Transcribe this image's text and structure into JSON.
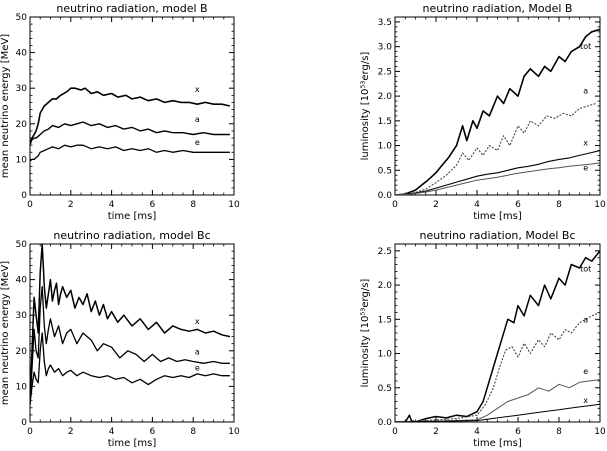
{
  "chart_data": [
    {
      "type": "line",
      "title": "neutrino radiation,  model B",
      "xlabel": "time [ms]",
      "ylabel": "mean neutrino energy [MeV]",
      "xlim": [
        0,
        10
      ],
      "ylim": [
        0,
        50
      ],
      "xticks": [
        "0",
        "2",
        "4",
        "6",
        "8",
        "10"
      ],
      "yticks": [
        "0",
        "10",
        "20",
        "30",
        "40",
        "50"
      ],
      "grid": false,
      "series": [
        {
          "name": "x",
          "color": "#000000",
          "width": 1.6,
          "x": [
            0,
            0.1,
            0.2,
            0.3,
            0.4,
            0.5,
            0.6,
            0.7,
            0.9,
            1.1,
            1.3,
            1.5,
            1.8,
            2.0,
            2.2,
            2.5,
            2.7,
            3.0,
            3.3,
            3.6,
            4.0,
            4.3,
            4.7,
            5.0,
            5.4,
            5.8,
            6.2,
            6.6,
            7.0,
            7.4,
            7.8,
            8.2,
            8.6,
            9.0,
            9.4,
            9.8
          ],
          "y": [
            14,
            16,
            17,
            18,
            20,
            23,
            24,
            25,
            26,
            27,
            27,
            28,
            29,
            30,
            30,
            29.5,
            30,
            28.5,
            29,
            28,
            28.5,
            27.5,
            28,
            27,
            27.5,
            26.5,
            27,
            26,
            26.5,
            26,
            26,
            25.5,
            26,
            25.5,
            25.5,
            25
          ]
        },
        {
          "name": "a",
          "color": "#000000",
          "width": 1.4,
          "x": [
            0,
            0.1,
            0.2,
            0.3,
            0.4,
            0.5,
            0.7,
            0.9,
            1.1,
            1.4,
            1.7,
            2.0,
            2.3,
            2.6,
            3.0,
            3.4,
            3.8,
            4.2,
            4.6,
            5.0,
            5.4,
            5.8,
            6.2,
            6.6,
            7.0,
            7.5,
            8.0,
            8.5,
            9.0,
            9.4,
            9.8
          ],
          "y": [
            15,
            15.5,
            16,
            16,
            16.5,
            17,
            18,
            18.5,
            19.5,
            19,
            20,
            19.5,
            20,
            20.5,
            19.5,
            20,
            19,
            19.5,
            18.5,
            19,
            18,
            18.5,
            17.5,
            18,
            17.5,
            17.5,
            17,
            17.5,
            17,
            17,
            17
          ]
        },
        {
          "name": "e",
          "color": "#000000",
          "width": 1.3,
          "x": [
            0,
            0.1,
            0.2,
            0.3,
            0.4,
            0.5,
            0.7,
            0.9,
            1.1,
            1.4,
            1.7,
            2.0,
            2.3,
            2.6,
            3.0,
            3.4,
            3.8,
            4.2,
            4.6,
            5.0,
            5.4,
            5.8,
            6.2,
            6.6,
            7.0,
            7.5,
            8.0,
            8.5,
            9.0,
            9.4,
            9.8
          ],
          "y": [
            9.5,
            10,
            10,
            10.5,
            11,
            12,
            12.5,
            13,
            13.5,
            13,
            14,
            13.5,
            14,
            14,
            13,
            13.5,
            13,
            13.5,
            12.5,
            13,
            12.5,
            13,
            12,
            12.5,
            12,
            12.5,
            12,
            12,
            12,
            12,
            12
          ]
        }
      ],
      "annotations": [
        {
          "text": "x",
          "x": 8.2,
          "y": 29
        },
        {
          "text": "a",
          "x": 8.2,
          "y": 20.5
        },
        {
          "text": "e",
          "x": 8.2,
          "y": 14
        }
      ]
    },
    {
      "type": "line",
      "title": "neutrino radiation,  Model B",
      "xlabel": "time [ms]",
      "ylabel": "luminosity  [10⁵³erg/s]",
      "xlim": [
        0,
        10
      ],
      "ylim": [
        0,
        3.6
      ],
      "xticks": [
        "0",
        "2",
        "4",
        "6",
        "8",
        "10"
      ],
      "yticks": [
        "0.0",
        "0.5",
        "1.0",
        "1.5",
        "2.0",
        "2.5",
        "3.0",
        "3.5"
      ],
      "grid": false,
      "series": [
        {
          "name": "tot",
          "color": "#000000",
          "width": 1.6,
          "x": [
            0,
            0.5,
            1.0,
            1.3,
            1.6,
            2.0,
            2.3,
            2.6,
            3.0,
            3.3,
            3.5,
            3.8,
            4.0,
            4.3,
            4.6,
            5.0,
            5.3,
            5.6,
            6.0,
            6.3,
            6.6,
            7.0,
            7.3,
            7.6,
            8.0,
            8.3,
            8.6,
            9.0,
            9.3,
            9.6,
            10.0
          ],
          "y": [
            0,
            0.02,
            0.1,
            0.2,
            0.3,
            0.45,
            0.6,
            0.75,
            1.0,
            1.4,
            1.1,
            1.5,
            1.35,
            1.7,
            1.6,
            2.0,
            1.85,
            2.15,
            2.0,
            2.4,
            2.55,
            2.4,
            2.6,
            2.5,
            2.8,
            2.7,
            2.9,
            3.0,
            3.2,
            3.3,
            3.35
          ]
        },
        {
          "name": "a",
          "color": "#444444",
          "width": 1.1,
          "dash": "2 1.5",
          "x": [
            0,
            0.5,
            1.0,
            1.5,
            2.0,
            2.5,
            3.0,
            3.3,
            3.6,
            4.0,
            4.3,
            4.6,
            5.0,
            5.3,
            5.6,
            6.0,
            6.3,
            6.6,
            7.0,
            7.4,
            7.8,
            8.2,
            8.6,
            9.0,
            9.4,
            9.8
          ],
          "y": [
            0,
            0.02,
            0.05,
            0.12,
            0.25,
            0.4,
            0.6,
            0.85,
            0.7,
            0.95,
            0.8,
            1.0,
            0.9,
            1.2,
            1.0,
            1.4,
            1.25,
            1.5,
            1.4,
            1.6,
            1.55,
            1.65,
            1.6,
            1.75,
            1.8,
            1.85
          ]
        },
        {
          "name": "x",
          "color": "#000000",
          "width": 1.1,
          "x": [
            0,
            0.5,
            1.0,
            1.5,
            2.0,
            2.5,
            3.0,
            3.5,
            4.0,
            4.5,
            5.0,
            5.5,
            6.0,
            6.5,
            7.0,
            7.5,
            8.0,
            8.5,
            9.0,
            9.5,
            10.0
          ],
          "y": [
            0,
            0.01,
            0.04,
            0.08,
            0.14,
            0.2,
            0.26,
            0.32,
            0.38,
            0.42,
            0.45,
            0.5,
            0.55,
            0.58,
            0.62,
            0.68,
            0.72,
            0.75,
            0.8,
            0.85,
            0.9
          ]
        },
        {
          "name": "e",
          "color": "#555555",
          "width": 1.0,
          "x": [
            0,
            0.5,
            1.0,
            1.5,
            2.0,
            2.5,
            3.0,
            3.5,
            4.0,
            4.5,
            5.0,
            5.5,
            6.0,
            6.5,
            7.0,
            7.5,
            8.0,
            8.5,
            9.0,
            9.5,
            10.0
          ],
          "y": [
            0,
            0.01,
            0.03,
            0.06,
            0.1,
            0.15,
            0.2,
            0.25,
            0.3,
            0.33,
            0.36,
            0.4,
            0.44,
            0.47,
            0.5,
            0.53,
            0.55,
            0.58,
            0.6,
            0.62,
            0.65
          ]
        }
      ],
      "annotations": [
        {
          "text": "tot",
          "x": 9.3,
          "y": 2.95
        },
        {
          "text": "a",
          "x": 9.3,
          "y": 2.05
        },
        {
          "text": "x",
          "x": 9.3,
          "y": 1.0
        },
        {
          "text": "e",
          "x": 9.3,
          "y": 0.5
        }
      ]
    },
    {
      "type": "line",
      "title": "neutrino radiation,  model Bc",
      "xlabel": "time [ms]",
      "ylabel": "mean neutrino energy [MeV]",
      "xlim": [
        0,
        10
      ],
      "ylim": [
        0,
        50
      ],
      "xticks": [
        "0",
        "2",
        "4",
        "6",
        "8",
        "10"
      ],
      "yticks": [
        "0",
        "10",
        "20",
        "30",
        "40",
        "50"
      ],
      "grid": false,
      "series": [
        {
          "name": "x",
          "color": "#000000",
          "width": 1.5,
          "x": [
            0,
            0.1,
            0.2,
            0.3,
            0.4,
            0.5,
            0.6,
            0.7,
            0.8,
            0.9,
            1.0,
            1.1,
            1.2,
            1.3,
            1.4,
            1.5,
            1.6,
            1.8,
            2.0,
            2.2,
            2.4,
            2.6,
            2.8,
            3.0,
            3.2,
            3.4,
            3.6,
            3.8,
            4.0,
            4.3,
            4.6,
            5.0,
            5.4,
            5.8,
            6.2,
            6.6,
            7.0,
            7.4,
            7.8,
            8.2,
            8.6,
            9.0,
            9.4,
            9.8
          ],
          "y": [
            5,
            20,
            35,
            30,
            25,
            42,
            50,
            38,
            32,
            36,
            40,
            34,
            37,
            39,
            33,
            36,
            38,
            35,
            37,
            32,
            35,
            33,
            36,
            31,
            34,
            30,
            33,
            29,
            31,
            28,
            30,
            27,
            29,
            26,
            28,
            25,
            27,
            26,
            25.5,
            26,
            25,
            25.5,
            24.5,
            24
          ]
        },
        {
          "name": "a",
          "color": "#000000",
          "width": 1.3,
          "x": [
            0,
            0.1,
            0.2,
            0.3,
            0.4,
            0.5,
            0.6,
            0.7,
            0.8,
            0.9,
            1.0,
            1.2,
            1.4,
            1.6,
            1.8,
            2.0,
            2.3,
            2.6,
            3.0,
            3.3,
            3.6,
            4.0,
            4.4,
            4.8,
            5.2,
            5.6,
            6.0,
            6.4,
            6.8,
            7.2,
            7.6,
            8.0,
            8.5,
            9.0,
            9.4,
            9.8
          ],
          "y": [
            5,
            15,
            26,
            20,
            18,
            32,
            38,
            27,
            22,
            26,
            29,
            24,
            27,
            22,
            25,
            26,
            22,
            25,
            23,
            20,
            22,
            21,
            18,
            20,
            19,
            17,
            19,
            17,
            18,
            17,
            17.5,
            17,
            16.5,
            17,
            16.5,
            16.5
          ]
        },
        {
          "name": "e",
          "color": "#000000",
          "width": 1.3,
          "x": [
            0,
            0.1,
            0.2,
            0.3,
            0.4,
            0.5,
            0.6,
            0.7,
            0.8,
            0.9,
            1.0,
            1.2,
            1.4,
            1.6,
            1.8,
            2.0,
            2.3,
            2.6,
            3.0,
            3.4,
            3.8,
            4.2,
            4.6,
            5.0,
            5.4,
            5.8,
            6.2,
            6.6,
            7.0,
            7.4,
            7.8,
            8.2,
            8.6,
            9.0,
            9.4,
            9.8
          ],
          "y": [
            5,
            10,
            14,
            12,
            11,
            20,
            25,
            17,
            13,
            15,
            16,
            14,
            15,
            13,
            14,
            14.5,
            13,
            14,
            13,
            12.5,
            13,
            12,
            12.5,
            11,
            12,
            10.5,
            12,
            13,
            12.5,
            13,
            12.5,
            13.5,
            13,
            13.5,
            13,
            13
          ]
        }
      ],
      "annotations": [
        {
          "text": "x",
          "x": 8.2,
          "y": 27.5
        },
        {
          "text": "a",
          "x": 8.2,
          "y": 19
        },
        {
          "text": "e",
          "x": 8.2,
          "y": 14.5
        }
      ]
    },
    {
      "type": "line",
      "title": "neutrino radiation,  Model Bc",
      "xlabel": "time [ms]",
      "ylabel": "luminosity  [10⁵³erg/s]",
      "xlim": [
        0,
        10
      ],
      "ylim": [
        0,
        2.6
      ],
      "xticks": [
        "0",
        "2",
        "4",
        "6",
        "8",
        "10"
      ],
      "yticks": [
        "0.0",
        "0.5",
        "1.0",
        "1.5",
        "2.0",
        "2.5"
      ],
      "grid": false,
      "series": [
        {
          "name": "tot",
          "color": "#000000",
          "width": 1.5,
          "x": [
            0,
            0.5,
            0.7,
            0.8,
            1.0,
            1.5,
            2.0,
            2.5,
            3.0,
            3.5,
            4.0,
            4.3,
            4.6,
            4.9,
            5.2,
            5.5,
            5.8,
            6.0,
            6.3,
            6.6,
            7.0,
            7.3,
            7.6,
            8.0,
            8.3,
            8.6,
            9.0,
            9.3,
            9.6,
            10.0
          ],
          "y": [
            0,
            0,
            0.1,
            0.02,
            0,
            0.05,
            0.08,
            0.06,
            0.1,
            0.08,
            0.15,
            0.3,
            0.6,
            0.9,
            1.2,
            1.5,
            1.45,
            1.7,
            1.55,
            1.85,
            1.7,
            2.0,
            1.8,
            2.1,
            2.0,
            2.3,
            2.25,
            2.4,
            2.35,
            2.5
          ]
        },
        {
          "name": "a",
          "color": "#444444",
          "width": 1.1,
          "dash": "2 1.5",
          "x": [
            0,
            1.0,
            2.0,
            3.0,
            4.0,
            4.4,
            4.8,
            5.1,
            5.4,
            5.7,
            6.0,
            6.3,
            6.6,
            7.0,
            7.3,
            7.6,
            8.0,
            8.3,
            8.6,
            9.0,
            9.3,
            9.6,
            10.0
          ],
          "y": [
            0,
            0.01,
            0.03,
            0.05,
            0.1,
            0.25,
            0.5,
            0.8,
            1.05,
            1.1,
            0.95,
            1.15,
            1.0,
            1.2,
            1.1,
            1.3,
            1.2,
            1.35,
            1.3,
            1.45,
            1.5,
            1.55,
            1.6
          ]
        },
        {
          "name": "e",
          "color": "#555555",
          "width": 1.0,
          "x": [
            0,
            2.0,
            4.0,
            4.5,
            5.0,
            5.5,
            6.0,
            6.5,
            7.0,
            7.5,
            8.0,
            8.5,
            9.0,
            9.5,
            10.0
          ],
          "y": [
            0,
            0.01,
            0.03,
            0.1,
            0.2,
            0.3,
            0.35,
            0.4,
            0.5,
            0.45,
            0.55,
            0.5,
            0.58,
            0.6,
            0.62
          ]
        },
        {
          "name": "x",
          "color": "#000000",
          "width": 1.0,
          "x": [
            0,
            2.0,
            4.0,
            4.5,
            5.0,
            5.5,
            6.0,
            6.5,
            7.0,
            7.5,
            8.0,
            8.5,
            9.0,
            9.5,
            10.0
          ],
          "y": [
            0,
            0.01,
            0.02,
            0.04,
            0.06,
            0.08,
            0.1,
            0.12,
            0.14,
            0.16,
            0.18,
            0.2,
            0.22,
            0.24,
            0.26
          ]
        }
      ],
      "annotations": [
        {
          "text": "tot",
          "x": 9.3,
          "y": 2.2
        },
        {
          "text": "a",
          "x": 9.3,
          "y": 1.45
        },
        {
          "text": "e",
          "x": 9.3,
          "y": 0.7
        },
        {
          "text": "x",
          "x": 9.3,
          "y": 0.28
        }
      ]
    }
  ]
}
